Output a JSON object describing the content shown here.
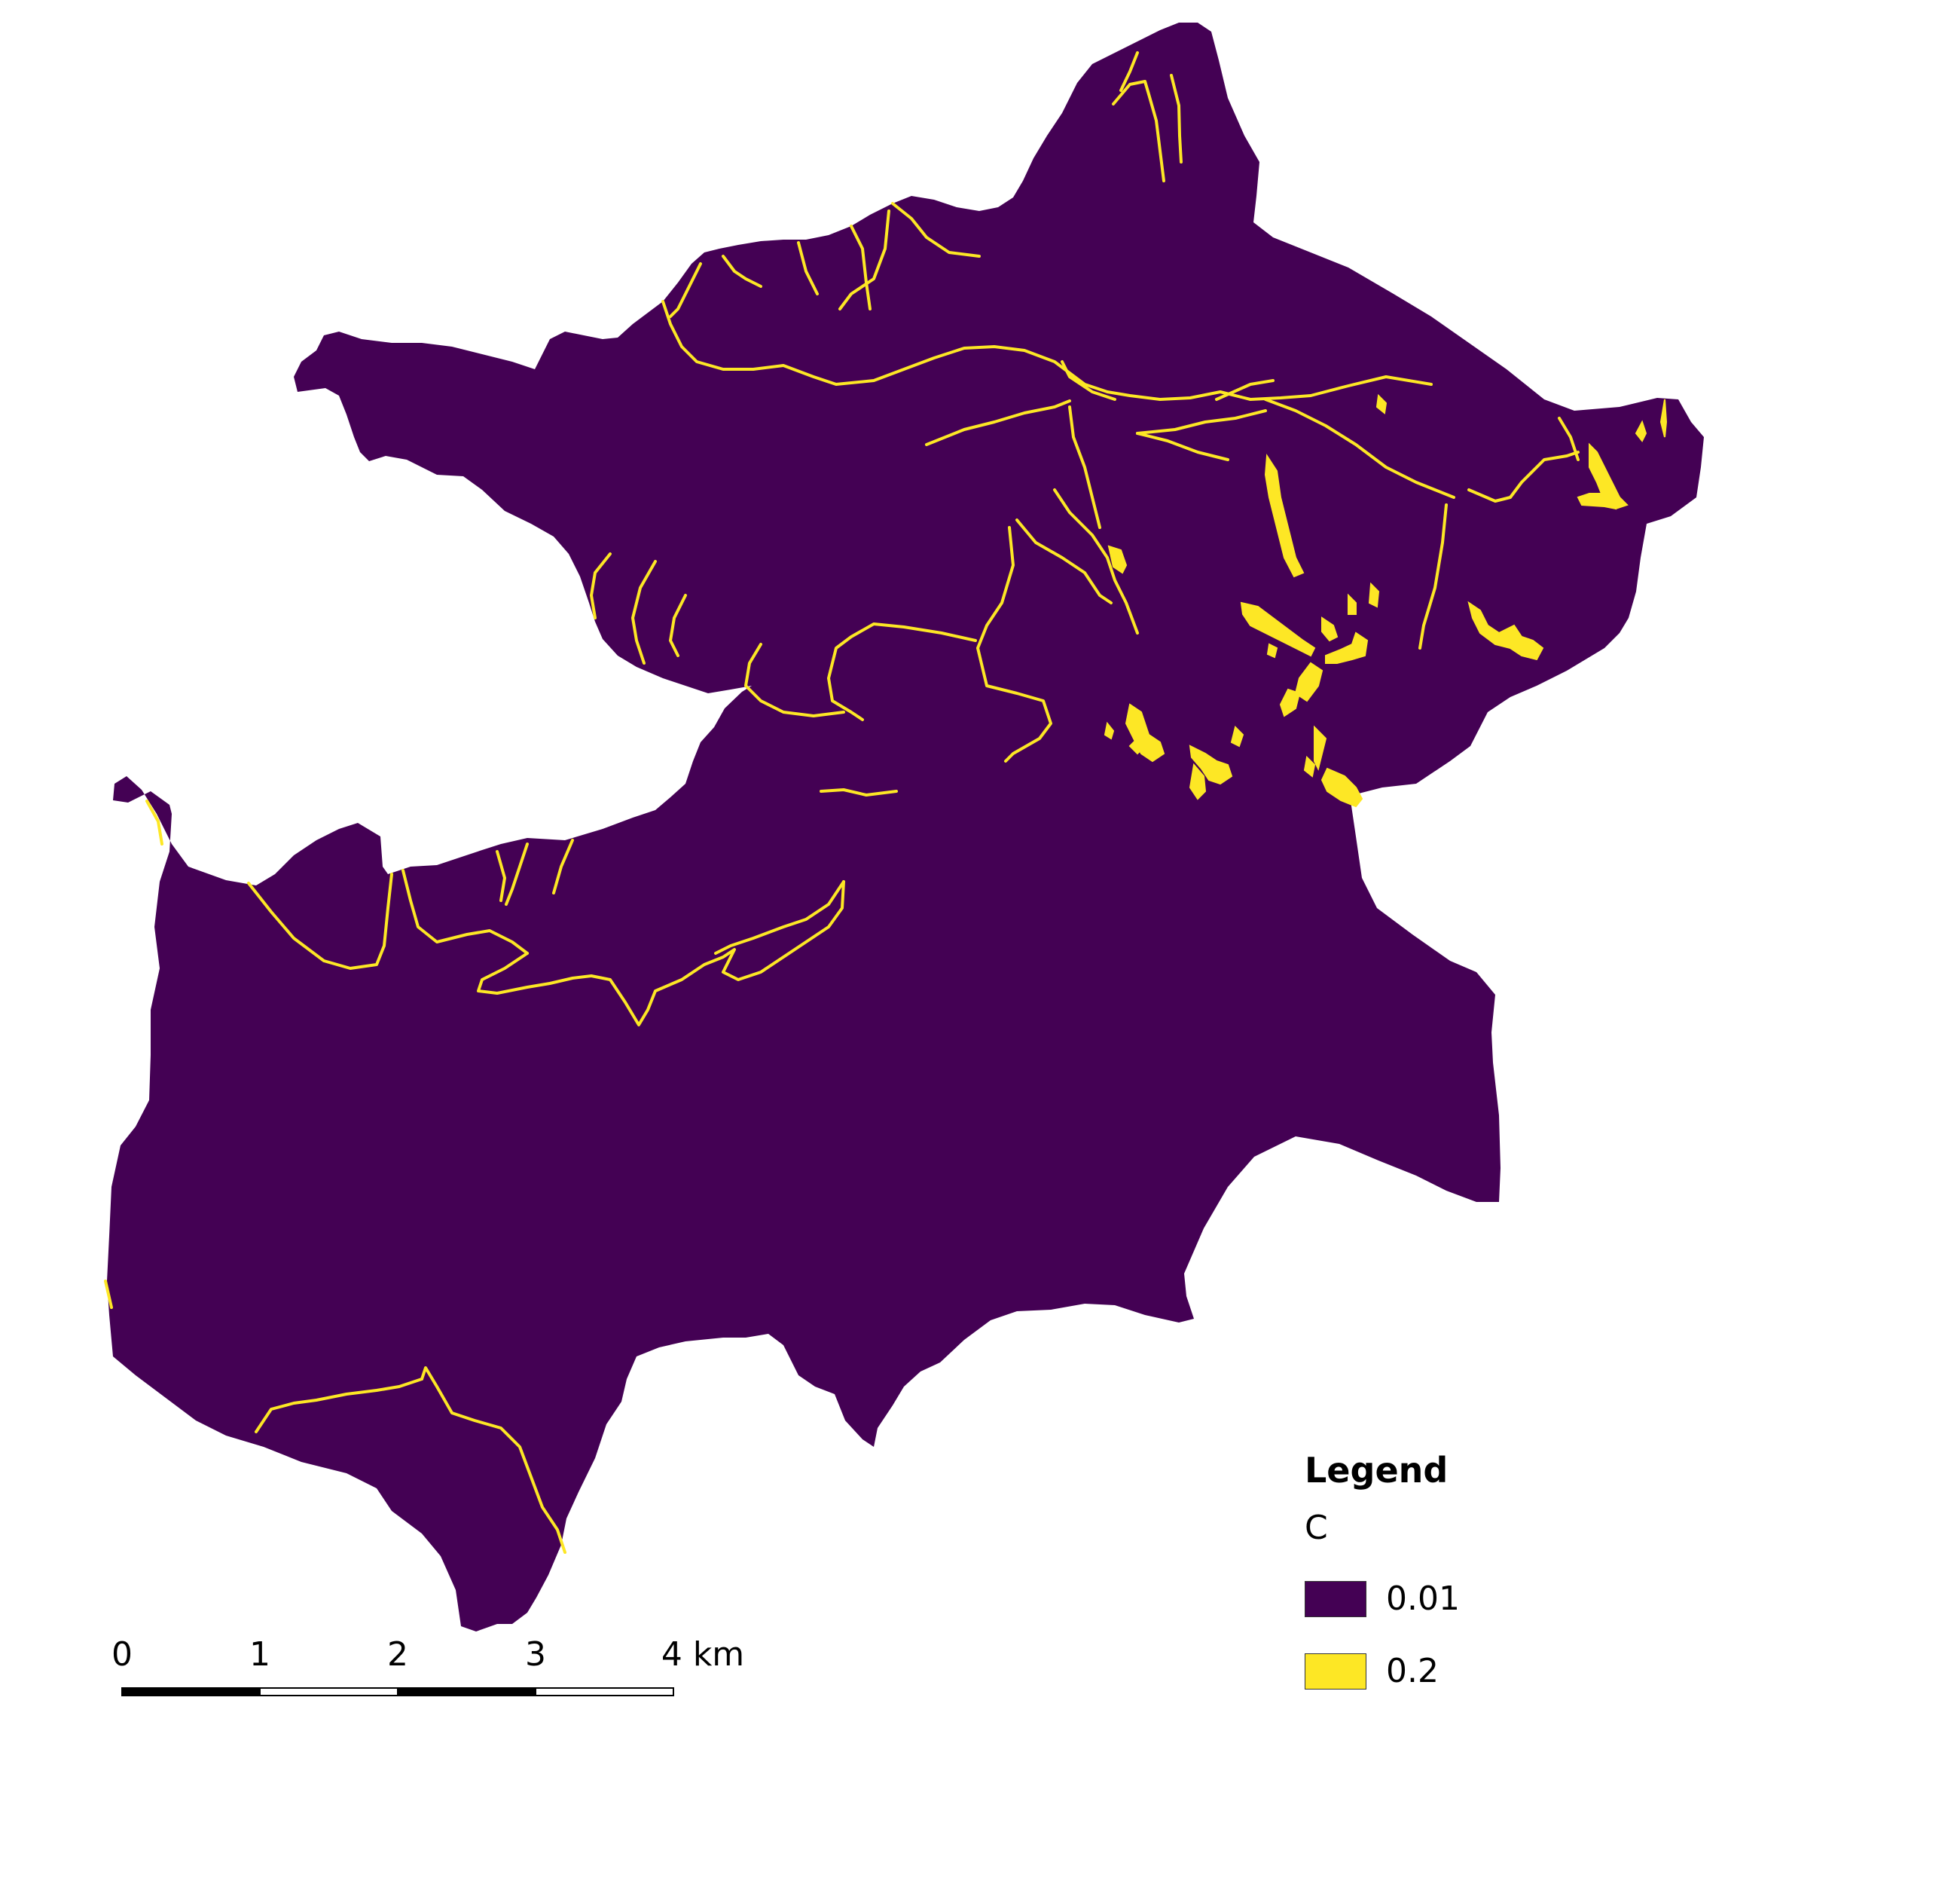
{
  "map": {
    "colors": {
      "background": "#ffffff",
      "catchment": "#440154",
      "channel": "#fde725",
      "scalebar_dark": "#000000",
      "scalebar_light": "#ffffff"
    }
  },
  "legend": {
    "title": "Legend",
    "field": "C",
    "items": [
      {
        "label": "0.01",
        "color": "#440154"
      },
      {
        "label": "0.2",
        "color": "#fde725"
      }
    ]
  },
  "scalebar": {
    "labels": [
      "0",
      "1",
      "2",
      "3",
      "4 km"
    ]
  }
}
